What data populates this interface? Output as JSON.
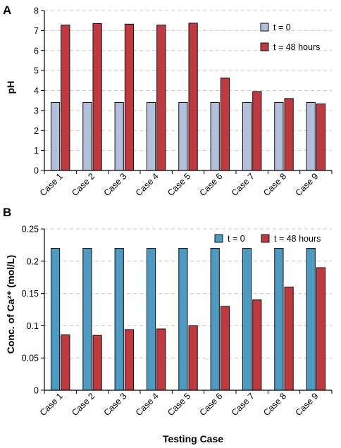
{
  "figure": {
    "xlabel": "Testing Case"
  },
  "chart_data": [
    {
      "panel": "A",
      "type": "bar",
      "title": "",
      "ylabel": "pH",
      "xlabel": "",
      "ylim": [
        0,
        8
      ],
      "yticks": [
        "0",
        "1",
        "2",
        "3",
        "4",
        "5",
        "6",
        "7",
        "8"
      ],
      "grid": "horizontal dashed",
      "legend": "top-right",
      "categories": [
        "Case 1",
        "Case 2",
        "Case 3",
        "Case 4",
        "Case 5",
        "Case 6",
        "Case 7",
        "Case 8",
        "Case 9"
      ],
      "series": [
        {
          "name": "t = 0",
          "color": "#b4c0db",
          "values": [
            3.4,
            3.4,
            3.4,
            3.4,
            3.4,
            3.4,
            3.4,
            3.4,
            3.4
          ]
        },
        {
          "name": "t = 48 hours",
          "color": "#c0393e",
          "values": [
            7.28,
            7.35,
            7.32,
            7.28,
            7.37,
            4.62,
            3.95,
            3.6,
            3.33
          ]
        }
      ]
    },
    {
      "panel": "B",
      "type": "bar",
      "title": "",
      "ylabel": "Conc. of Ca²⁺ (mol/L)",
      "xlabel": "Testing Case",
      "ylim": [
        0,
        0.25
      ],
      "yticks": [
        "0",
        "0.05",
        "0.1",
        "0.15",
        "0.2",
        "0.25"
      ],
      "grid": "horizontal dashed",
      "legend": "top-right",
      "categories": [
        "Case 1",
        "Case 2",
        "Case 3",
        "Case 4",
        "Case 5",
        "Case 6",
        "Case 7",
        "Case 8",
        "Case 9"
      ],
      "series": [
        {
          "name": "t = 0",
          "color": "#4d9bc3",
          "values": [
            0.22,
            0.22,
            0.22,
            0.22,
            0.22,
            0.22,
            0.22,
            0.22,
            0.22
          ]
        },
        {
          "name": "t = 48 hours",
          "color": "#c0393e",
          "values": [
            0.086,
            0.085,
            0.094,
            0.095,
            0.1,
            0.13,
            0.14,
            0.16,
            0.19
          ]
        }
      ]
    }
  ]
}
